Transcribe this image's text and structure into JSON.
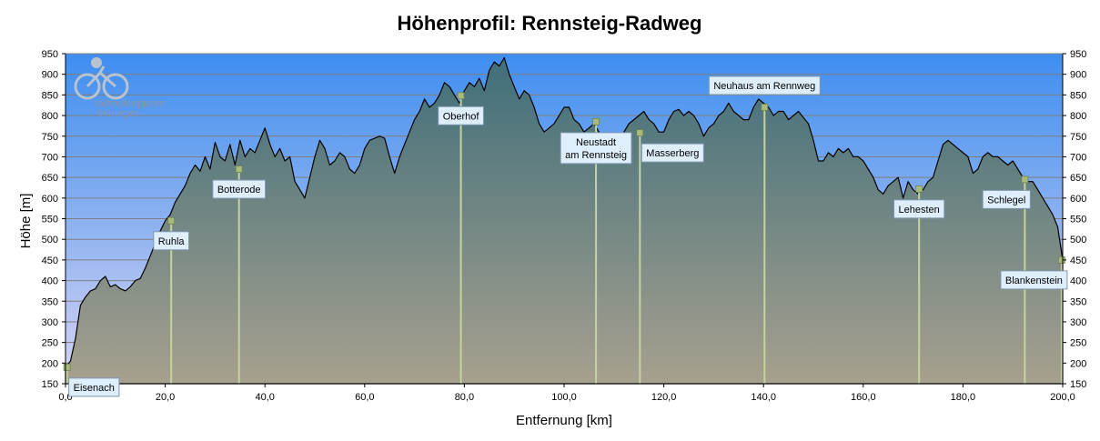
{
  "chart_data": {
    "type": "area",
    "title": "Höhenprofil: Rennsteig-Radweg",
    "xlabel": "Entfernung  [km]",
    "ylabel": "Höhe  [m]",
    "xlim": [
      0,
      200
    ],
    "ylim": [
      150,
      950
    ],
    "x_ticks": [
      0,
      20,
      40,
      60,
      80,
      100,
      120,
      140,
      160,
      180,
      200
    ],
    "x_tick_labels": [
      "0,0",
      "20,0",
      "40,0",
      "60,0",
      "80,0",
      "100,0",
      "120,0",
      "140,0",
      "160,0",
      "180,0",
      "200,0"
    ],
    "y_ticks": [
      150,
      200,
      250,
      300,
      350,
      400,
      450,
      500,
      550,
      600,
      650,
      700,
      750,
      800,
      850,
      900,
      950
    ],
    "y_tick_labels": [
      "150",
      "200",
      "250",
      "300",
      "350",
      "400",
      "450",
      "500",
      "550",
      "600",
      "650",
      "700",
      "750",
      "800",
      "850",
      "900",
      "950"
    ],
    "grid": true,
    "series": [
      {
        "x": [
          0,
          1,
          2,
          3,
          4,
          5,
          6,
          7,
          8,
          9,
          10,
          11,
          12,
          13,
          14,
          15,
          16,
          17,
          18,
          19,
          20,
          21,
          22,
          23,
          24,
          25,
          26,
          27,
          28,
          29,
          30,
          31,
          32,
          33,
          34,
          35,
          36,
          37,
          38,
          39,
          40,
          41,
          42,
          43,
          44,
          45,
          46,
          47,
          48,
          49,
          50,
          51,
          52,
          53,
          54,
          55,
          56,
          57,
          58,
          59,
          60,
          61,
          62,
          63,
          64,
          65,
          66,
          67,
          68,
          69,
          70,
          71,
          72,
          73,
          74,
          75,
          76,
          77,
          78,
          79,
          80,
          81,
          82,
          83,
          84,
          85,
          86,
          87,
          88,
          89,
          90,
          91,
          92,
          93,
          94,
          95,
          96,
          97,
          98,
          99,
          100,
          101,
          102,
          103,
          104,
          105,
          106,
          107,
          108,
          109,
          110,
          111,
          112,
          113,
          114,
          115,
          116,
          117,
          118,
          119,
          120,
          121,
          122,
          123,
          124,
          125,
          126,
          127,
          128,
          129,
          130,
          131,
          132,
          133,
          134,
          135,
          136,
          137,
          138,
          139,
          140,
          141,
          142,
          143,
          144,
          145,
          146,
          147,
          148,
          149,
          150,
          151,
          152,
          153,
          154,
          155,
          156,
          157,
          158,
          159,
          160,
          161,
          162,
          163,
          164,
          165,
          166,
          167,
          168,
          169,
          170,
          171,
          172,
          173,
          174,
          175,
          176,
          177,
          178,
          179,
          180,
          181,
          182,
          183,
          184,
          185,
          186,
          187,
          188,
          189,
          190,
          191,
          192,
          193,
          194,
          195,
          196,
          197,
          198,
          199,
          200
        ],
        "values": [
          190,
          205,
          260,
          340,
          360,
          375,
          380,
          400,
          410,
          385,
          390,
          380,
          375,
          385,
          400,
          405,
          430,
          460,
          490,
          520,
          545,
          560,
          590,
          610,
          630,
          660,
          680,
          665,
          700,
          670,
          735,
          700,
          690,
          730,
          680,
          740,
          700,
          720,
          710,
          740,
          770,
          730,
          700,
          720,
          690,
          700,
          640,
          620,
          600,
          650,
          700,
          740,
          720,
          680,
          690,
          710,
          700,
          670,
          660,
          680,
          720,
          740,
          745,
          750,
          745,
          700,
          660,
          700,
          730,
          760,
          790,
          810,
          840,
          820,
          830,
          850,
          880,
          870,
          850,
          830,
          860,
          880,
          870,
          890,
          860,
          910,
          930,
          920,
          940,
          900,
          870,
          840,
          860,
          850,
          820,
          780,
          760,
          770,
          780,
          800,
          820,
          820,
          790,
          780,
          760,
          770,
          780,
          760,
          740,
          730,
          710,
          730,
          760,
          780,
          790,
          800,
          810,
          790,
          780,
          760,
          760,
          790,
          810,
          815,
          800,
          810,
          800,
          780,
          750,
          770,
          780,
          800,
          810,
          830,
          810,
          800,
          790,
          790,
          820,
          840,
          830,
          820,
          800,
          810,
          810,
          790,
          800,
          810,
          795,
          780,
          740,
          690,
          690,
          710,
          700,
          720,
          710,
          720,
          700,
          700,
          690,
          670,
          650,
          620,
          610,
          630,
          640,
          650,
          600,
          640,
          620,
          610,
          620,
          640,
          650,
          690,
          730,
          740,
          730,
          720,
          710,
          700,
          660,
          670,
          700,
          710,
          700,
          700,
          690,
          680,
          690,
          670,
          650,
          640,
          640,
          620,
          600,
          580,
          560,
          530,
          450
        ]
      }
    ],
    "stops": [
      {
        "name": "Eisenach",
        "km": 0.3,
        "alt": 190,
        "label_pos": "below-right"
      },
      {
        "name": "Ruhla",
        "km": 21.2,
        "alt": 545,
        "label_pos": "below"
      },
      {
        "name": "Botterode",
        "km": 34.8,
        "alt": 670,
        "label_pos": "below"
      },
      {
        "name": "Oberhof",
        "km": 79.3,
        "alt": 848,
        "label_pos": "below"
      },
      {
        "name": "Neustadt",
        "name2": "am Rennsteig",
        "km": 106.4,
        "alt": 785,
        "label_pos": "below"
      },
      {
        "name": "Masserberg",
        "km": 115.2,
        "alt": 758,
        "label_pos": "below-right"
      },
      {
        "name": "Neuhaus am Rennweg",
        "km": 140.2,
        "alt": 820,
        "label_pos": "above"
      },
      {
        "name": "Lehesten",
        "km": 171.2,
        "alt": 622,
        "label_pos": "below"
      },
      {
        "name": "Schlegel",
        "km": 192.4,
        "alt": 645,
        "label_pos": "below-left"
      },
      {
        "name": "Blankenstein",
        "km": 199.8,
        "alt": 450,
        "label_pos": "below-left"
      }
    ]
  },
  "logo": {
    "line1": "radroutenplaner",
    "line2": "thüringen"
  },
  "colors": {
    "sky_top": "#3e8ef0",
    "sky_bottom": "#d8d4f2",
    "fill_top": "#3f6e7a",
    "fill_bottom": "#a7a08e",
    "marker_line": "#c4d49a",
    "marker": "#a7bb7c",
    "label_bg": "#dfeefb",
    "label_border": "#7d97b0"
  }
}
